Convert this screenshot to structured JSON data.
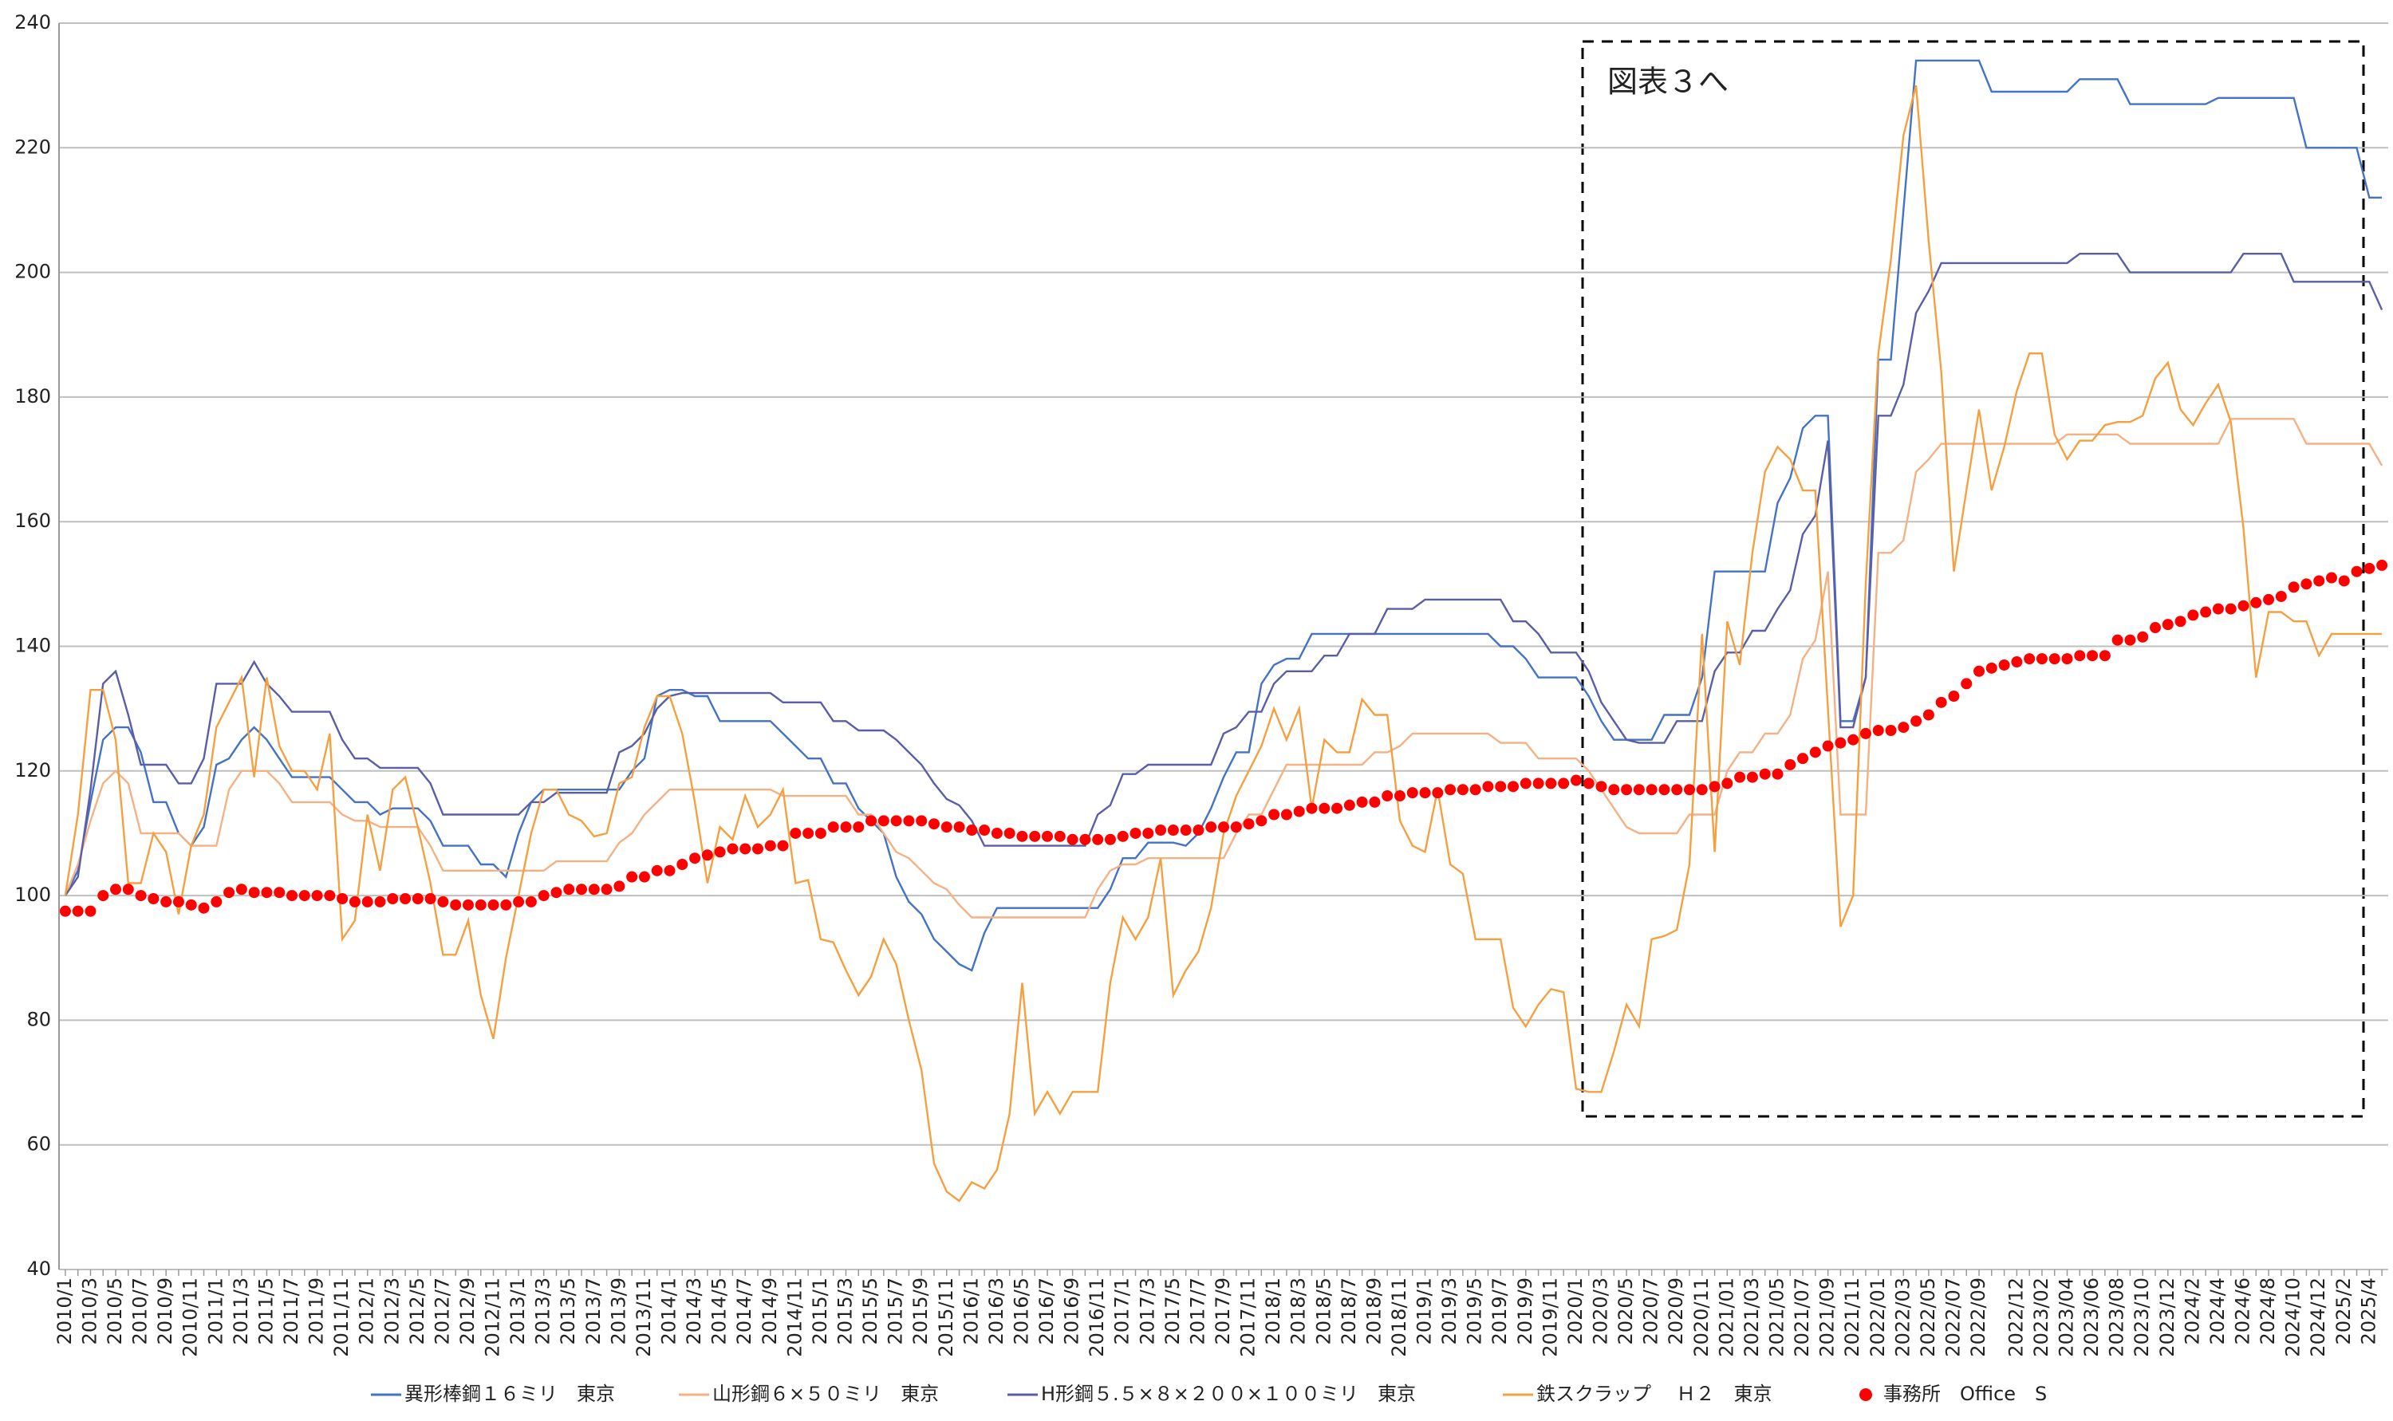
{
  "chart_data": {
    "type": "line",
    "annotation": "図表３へ",
    "categories": [
      "2010/1",
      null,
      "2010/3",
      null,
      "2010/5",
      null,
      "2010/7",
      null,
      "2010/9",
      null,
      "2010/11",
      null,
      "2011/1",
      null,
      "2011/3",
      null,
      "2011/5",
      null,
      "2011/7",
      null,
      "2011/9",
      null,
      "2011/11",
      null,
      "2012/1",
      null,
      "2012/3",
      null,
      "2012/5",
      null,
      "2012/7",
      null,
      "2012/9",
      null,
      "2012/11",
      null,
      "2013/1",
      null,
      "2013/3",
      null,
      "2013/5",
      null,
      "2013/7",
      null,
      "2013/9",
      null,
      "2013/11",
      null,
      "2014/1",
      null,
      "2014/3",
      null,
      "2014/5",
      null,
      "2014/7",
      null,
      "2014/9",
      null,
      "2014/11",
      null,
      "2015/1",
      null,
      "2015/3",
      null,
      "2015/5",
      null,
      "2015/7",
      null,
      "2015/9",
      null,
      "2015/11",
      null,
      "2016/1",
      null,
      "2016/3",
      null,
      "2016/5",
      null,
      "2016/7",
      null,
      "2016/9",
      null,
      "2016/11",
      null,
      "2017/1",
      null,
      "2017/3",
      null,
      "2017/5",
      null,
      "2017/7",
      null,
      "2017/9",
      null,
      "2017/11",
      null,
      "2018/1",
      null,
      "2018/3",
      null,
      "2018/5",
      null,
      "2018/7",
      null,
      "2018/9",
      null,
      "2018/11",
      null,
      "2019/1",
      null,
      "2019/3",
      null,
      "2019/5",
      null,
      "2019/7",
      null,
      "2019/9",
      null,
      "2019/11",
      null,
      "2020/1",
      null,
      "2020/3",
      null,
      "2020/5",
      null,
      "2020/7",
      null,
      "2020/9",
      null,
      "2020/11",
      null,
      "2021/01",
      null,
      "2021/03",
      null,
      "2021/05",
      null,
      "2021/07",
      null,
      "2021/09",
      null,
      "2021/11",
      null,
      "2022/01",
      null,
      "2022/03",
      null,
      "2022/05",
      null,
      "2022/07",
      null,
      "2022/09",
      null,
      null,
      "2022/12",
      null,
      "2023/02",
      null,
      "2023/04",
      null,
      "2023/06",
      null,
      "2023/08",
      null,
      "2023/10",
      null,
      "2023/12",
      null,
      "2024/2",
      null,
      "2024/4",
      null,
      "2024/6",
      null,
      "2024/8",
      null,
      "2024/10",
      null,
      "2024/12",
      null,
      "2025/2",
      null,
      "2025/4",
      null
    ],
    "series": [
      {
        "name": "異形棒鋼１６ミリ　東京",
        "color": "#4472c4",
        "values": [
          100,
          104,
          115,
          125,
          127,
          127,
          123,
          115,
          115,
          110,
          108,
          111,
          121,
          122,
          125,
          127,
          125,
          122,
          119,
          119,
          119,
          119,
          117,
          115,
          115,
          113,
          114,
          114,
          114,
          112,
          108,
          108,
          108,
          105,
          105,
          103,
          110,
          115,
          117,
          117,
          117,
          117,
          117,
          117,
          117,
          120,
          122,
          132,
          133,
          133,
          132,
          132,
          128,
          128,
          128,
          128,
          128,
          126,
          124,
          122,
          122,
          118,
          118,
          114,
          112,
          110,
          103,
          99,
          97,
          93,
          91,
          89,
          88,
          94,
          98,
          98,
          98,
          98,
          98,
          98,
          98,
          98,
          98,
          101,
          106,
          106,
          108.5,
          108.5,
          108.5,
          108,
          110,
          114,
          119,
          123,
          123,
          134,
          137,
          138,
          138,
          142,
          142,
          142,
          142,
          142,
          142,
          142,
          142,
          142,
          142,
          142,
          142,
          142,
          142,
          142,
          140,
          140,
          138,
          135,
          135,
          135,
          135,
          132,
          128,
          125,
          125,
          125,
          125,
          129,
          129,
          129,
          135,
          152,
          152,
          152,
          152,
          152,
          163,
          167,
          175,
          177,
          177,
          128,
          128,
          135,
          186,
          186,
          210,
          234,
          234,
          234,
          234,
          234,
          234,
          229,
          229,
          229,
          229,
          229,
          229,
          229,
          231,
          231,
          231,
          231,
          227,
          227,
          227,
          227,
          227,
          227,
          227,
          228,
          228,
          228,
          228,
          228,
          228,
          228,
          220,
          220,
          220,
          220,
          220,
          212,
          212
        ]
      },
      {
        "name": "山形鋼６×５０ミリ　東京",
        "color": "#f4b183",
        "values": [
          100,
          105,
          112,
          118,
          120,
          118,
          110,
          110,
          110,
          110,
          108,
          108,
          108,
          117,
          120,
          120,
          120,
          118,
          115,
          115,
          115,
          115,
          113,
          112,
          112,
          111,
          111,
          111,
          111,
          108,
          104,
          104,
          104,
          104,
          104,
          104,
          104,
          104,
          104,
          105.5,
          105.5,
          105.5,
          105.5,
          105.5,
          108.5,
          110,
          113,
          115,
          117,
          117,
          117,
          117,
          117,
          117,
          117,
          117,
          117,
          116,
          116,
          116,
          116,
          116,
          116,
          113,
          113,
          110,
          107,
          106,
          104,
          102,
          101,
          98.5,
          96.5,
          96.5,
          96.5,
          96.5,
          96.5,
          96.5,
          96.5,
          96.5,
          96.5,
          96.5,
          101,
          104,
          105,
          105,
          106,
          106,
          106,
          106,
          106,
          106,
          106,
          110,
          113,
          113,
          117,
          121,
          121,
          121,
          121,
          121,
          121,
          121,
          123,
          123,
          124,
          126,
          126,
          126,
          126,
          126,
          126,
          126,
          124.5,
          124.5,
          124.5,
          122,
          122,
          122,
          122,
          120,
          117,
          114,
          111,
          110,
          110,
          110,
          110,
          113,
          113,
          113,
          120,
          123,
          123,
          126,
          126,
          129,
          138,
          141,
          152,
          113,
          113,
          113,
          155,
          155,
          157,
          168,
          170,
          172.5,
          172.5,
          172.5,
          172.5,
          172.5,
          172.5,
          172.5,
          172.5,
          172.5,
          172.5,
          174,
          174,
          174,
          174,
          174,
          172.5,
          172.5,
          172.5,
          172.5,
          172.5,
          172.5,
          172.5,
          172.5,
          176.5,
          176.5,
          176.5,
          176.5,
          176.5,
          176.5,
          172.5,
          172.5,
          172.5,
          172.5,
          172.5,
          172.5,
          169
        ]
      },
      {
        "name": "H形鋼５.５×８×２００×１００ミリ　東京",
        "color": "#5b5ea6",
        "values": [
          100,
          103,
          117,
          134,
          136,
          129,
          121,
          121,
          121,
          118,
          118,
          122,
          134,
          134,
          134,
          137.5,
          134,
          132,
          129.5,
          129.5,
          129.5,
          129.5,
          125,
          122,
          122,
          120.5,
          120.5,
          120.5,
          120.5,
          118,
          113,
          113,
          113,
          113,
          113,
          113,
          113,
          115,
          115,
          116.5,
          116.5,
          116.5,
          116.5,
          116.5,
          123,
          124,
          126,
          130,
          132,
          132.5,
          132.5,
          132.5,
          132.5,
          132.5,
          132.5,
          132.5,
          132.5,
          131,
          131,
          131,
          131,
          128,
          128,
          126.5,
          126.5,
          126.5,
          125,
          123,
          121,
          118,
          115.5,
          114.5,
          112,
          108,
          108,
          108,
          108,
          108,
          108,
          108,
          108,
          108,
          113,
          114.5,
          119.5,
          119.5,
          121,
          121,
          121,
          121,
          121,
          121,
          126,
          127,
          129.5,
          129.5,
          134,
          136,
          136,
          136,
          138.5,
          138.5,
          142,
          142,
          142,
          146,
          146,
          146,
          147.5,
          147.5,
          147.5,
          147.5,
          147.5,
          147.5,
          147.5,
          144,
          144,
          142,
          139,
          139,
          139,
          136,
          131,
          128,
          125,
          124.5,
          124.5,
          124.5,
          128,
          128,
          128,
          136,
          139,
          139,
          142.5,
          142.5,
          146,
          149,
          158,
          161,
          173,
          127,
          127,
          135,
          177,
          177,
          182,
          193.5,
          197,
          201.5,
          201.5,
          201.5,
          201.5,
          201.5,
          201.5,
          201.5,
          201.5,
          201.5,
          201.5,
          201.5,
          203,
          203,
          203,
          203,
          200,
          200,
          200,
          200,
          200,
          200,
          200,
          200,
          200,
          203,
          203,
          203,
          203,
          198.5,
          198.5,
          198.5,
          198.5,
          198.5,
          198.5,
          198.5,
          194
        ]
      },
      {
        "name": "鉄スクラップ　 Ｈ２　東京",
        "color": "#f5a040",
        "values": [
          100,
          113,
          133,
          133,
          125,
          102,
          102,
          110,
          107,
          97,
          108,
          113,
          127,
          131,
          135,
          119,
          135,
          124,
          120,
          120,
          117,
          126,
          93,
          96,
          113,
          104,
          117,
          119,
          111,
          102,
          90.5,
          90.5,
          96,
          84,
          77,
          90,
          100,
          110,
          117,
          117,
          113,
          112,
          109.5,
          110,
          118,
          119,
          127,
          132,
          132,
          126,
          115,
          102,
          111,
          109,
          116,
          111,
          113,
          117,
          102,
          102.5,
          93,
          92.5,
          88,
          84,
          87,
          93,
          89,
          80,
          72,
          57,
          52.5,
          51,
          54,
          53,
          56,
          65,
          86,
          65,
          68.5,
          65,
          68.5,
          68.5,
          68.5,
          86,
          96.5,
          93,
          96.5,
          106,
          84,
          88,
          91,
          98,
          110,
          116,
          120,
          124,
          130,
          125,
          130,
          114,
          125,
          123,
          123,
          131.5,
          129,
          129,
          112,
          108,
          107,
          117,
          105,
          103.5,
          93,
          93,
          93,
          82,
          79,
          82.5,
          85,
          84.5,
          69,
          68.5,
          68.5,
          75,
          82.5,
          79,
          93,
          93.5,
          94.5,
          105,
          142,
          107,
          144,
          137,
          155,
          168,
          172,
          170,
          165,
          165,
          130,
          95,
          100,
          150,
          187,
          202,
          222,
          230,
          205,
          184,
          152,
          165,
          178,
          165,
          172,
          181,
          187,
          187,
          174,
          170,
          173,
          173,
          175.5,
          176,
          176,
          177,
          183,
          185.5,
          178,
          175.5,
          179,
          182,
          176,
          159,
          135,
          145.5,
          145.5,
          144,
          144,
          138.5,
          142,
          142,
          142,
          142,
          142
        ]
      },
      {
        "name": "事務所　Office　S",
        "color": "#ff0000",
        "marker": "circle",
        "values": [
          97.5,
          97.5,
          97.5,
          100,
          101,
          101,
          100,
          99.5,
          99,
          99,
          98.5,
          98,
          99,
          100.5,
          101,
          100.5,
          100.5,
          100.5,
          100,
          100,
          100,
          100,
          99.5,
          99,
          99,
          99,
          99.5,
          99.5,
          99.5,
          99.5,
          99,
          98.5,
          98.5,
          98.5,
          98.5,
          98.5,
          99,
          99,
          100,
          100.5,
          101,
          101,
          101,
          101,
          101.5,
          103,
          103,
          104,
          104,
          105,
          106,
          106.5,
          107,
          107.5,
          107.5,
          107.5,
          108,
          108,
          110,
          110,
          110,
          111,
          111,
          111,
          112,
          112,
          112,
          112,
          112,
          111.5,
          111,
          111,
          110.5,
          110.5,
          110,
          110,
          109.5,
          109.5,
          109.5,
          109.5,
          109,
          109,
          109,
          109,
          109.5,
          110,
          110,
          110.5,
          110.5,
          110.5,
          110.5,
          111,
          111,
          111,
          111.5,
          112,
          113,
          113,
          113.5,
          114,
          114,
          114,
          114.5,
          115,
          115,
          116,
          116,
          116.5,
          116.5,
          116.5,
          117,
          117,
          117,
          117.5,
          117.5,
          117.5,
          118,
          118,
          118,
          118,
          118.5,
          118,
          117.5,
          117,
          117,
          117,
          117,
          117,
          117,
          117,
          117,
          117.5,
          118,
          119,
          119,
          119.5,
          119.5,
          121,
          122,
          123,
          124,
          124.5,
          125,
          126,
          126.5,
          126.5,
          127,
          128,
          129,
          131,
          132,
          134,
          136,
          136.5,
          137,
          137.5,
          138,
          138,
          138,
          138,
          138.5,
          138.5,
          138.5,
          141,
          141,
          141.5,
          143,
          143.5,
          144,
          145,
          145.5,
          146,
          146,
          146.5,
          147,
          147.5,
          148,
          149.5,
          150,
          150.5,
          151,
          150.5,
          152,
          152.5,
          153
        ]
      }
    ],
    "ylim": [
      40,
      240
    ],
    "yticks": [
      40,
      60,
      80,
      100,
      120,
      140,
      160,
      180,
      200,
      220,
      240
    ],
    "grid": true,
    "legend": "bottom"
  }
}
